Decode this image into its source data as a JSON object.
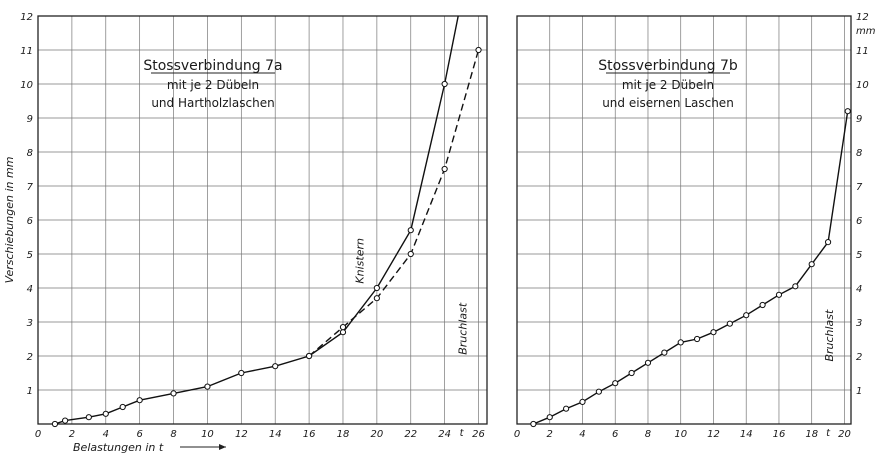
{
  "chart_data": [
    {
      "type": "line",
      "title": "Stossverbindung 7a",
      "subtitle_lines": [
        "mit je 2 Dübeln",
        "und Hartholzlaschen"
      ],
      "xlabel": "Belastungen in t",
      "ylabel": "Verschiebungen in mm",
      "x_ticks": [
        0,
        2,
        4,
        6,
        8,
        10,
        12,
        14,
        16,
        18,
        20,
        22,
        24,
        26
      ],
      "x_unit": "t",
      "y_ticks": [
        1,
        2,
        3,
        4,
        5,
        6,
        7,
        8,
        9,
        10,
        11,
        12
      ],
      "xlim": [
        0,
        26.5
      ],
      "ylim": [
        0,
        12
      ],
      "grid": true,
      "series": [
        {
          "style": "solid",
          "markers": true,
          "x": [
            1,
            1.6,
            3,
            4,
            5,
            6,
            8,
            10,
            12,
            14,
            16,
            18,
            20,
            22,
            24,
            24.8
          ],
          "y": [
            0,
            0.1,
            0.2,
            0.3,
            0.5,
            0.7,
            0.9,
            1.1,
            1.5,
            1.7,
            2.0,
            2.7,
            4.0,
            5.7,
            10.0,
            12.0
          ]
        },
        {
          "style": "dashed",
          "markers": true,
          "x": [
            16,
            18,
            20,
            22,
            24,
            26
          ],
          "y": [
            2.0,
            2.85,
            3.7,
            5.0,
            7.5,
            11.0
          ]
        }
      ],
      "annotations": [
        {
          "text": "Knistern",
          "x": 19.2,
          "y": 4.8
        },
        {
          "text": "Bruchlast",
          "x": 25.3,
          "y": 2.8
        }
      ]
    },
    {
      "type": "line",
      "title": "Stossverbindung 7b",
      "subtitle_lines": [
        "mit je 2 Dübeln",
        "und eisernen Laschen"
      ],
      "x_ticks": [
        0,
        2,
        4,
        6,
        8,
        10,
        12,
        14,
        16,
        18,
        20
      ],
      "x_unit": "t",
      "y_ticks": [
        1,
        2,
        3,
        4,
        5,
        6,
        7,
        8,
        9,
        10,
        11,
        12
      ],
      "y_unit": "mm",
      "xlim": [
        0,
        20.4
      ],
      "ylim": [
        0,
        12
      ],
      "grid": true,
      "series": [
        {
          "style": "solid",
          "markers": true,
          "x": [
            1,
            2,
            3,
            4,
            5,
            6,
            7,
            8,
            9,
            10,
            11,
            12,
            13,
            14,
            15,
            16,
            17,
            18,
            19,
            20.2
          ],
          "y": [
            0,
            0.2,
            0.45,
            0.65,
            0.95,
            1.2,
            1.5,
            1.8,
            2.1,
            2.4,
            2.5,
            2.7,
            2.95,
            3.2,
            3.5,
            3.8,
            4.05,
            4.7,
            5.35,
            9.2
          ]
        }
      ],
      "annotations": [
        {
          "text": "Bruchlast",
          "x": 19.3,
          "y": 2.6
        }
      ]
    }
  ]
}
